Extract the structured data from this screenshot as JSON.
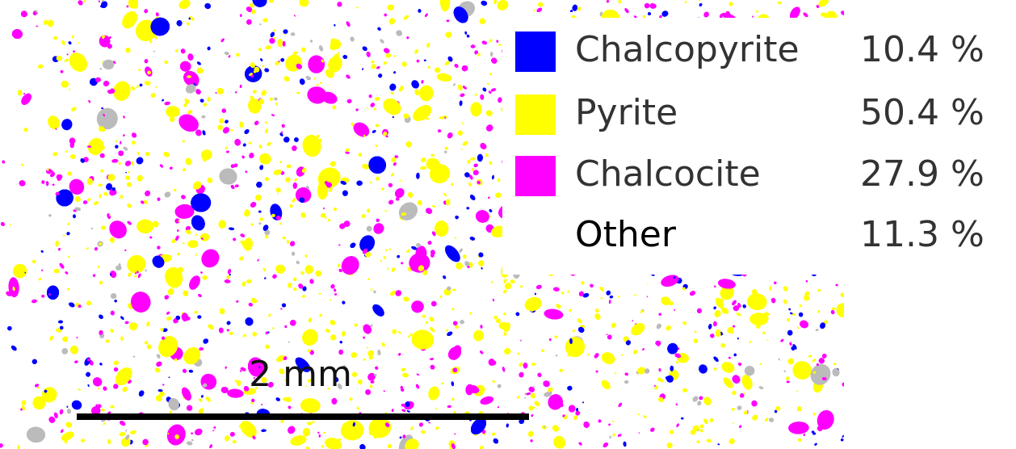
{
  "legend": {
    "entries": [
      {
        "name": "Chalcopyrite",
        "color": "#0000ff",
        "percent": "10.4 %"
      },
      {
        "name": "Pyrite",
        "color": "#ffff00",
        "percent": "50.4 %"
      },
      {
        "name": "Chalcocite",
        "color": "#ff00ff",
        "percent": "27.9 %"
      },
      {
        "name": "Other",
        "percent": "11.3 %"
      }
    ]
  },
  "scale_bar": {
    "label": "2 mm"
  }
}
